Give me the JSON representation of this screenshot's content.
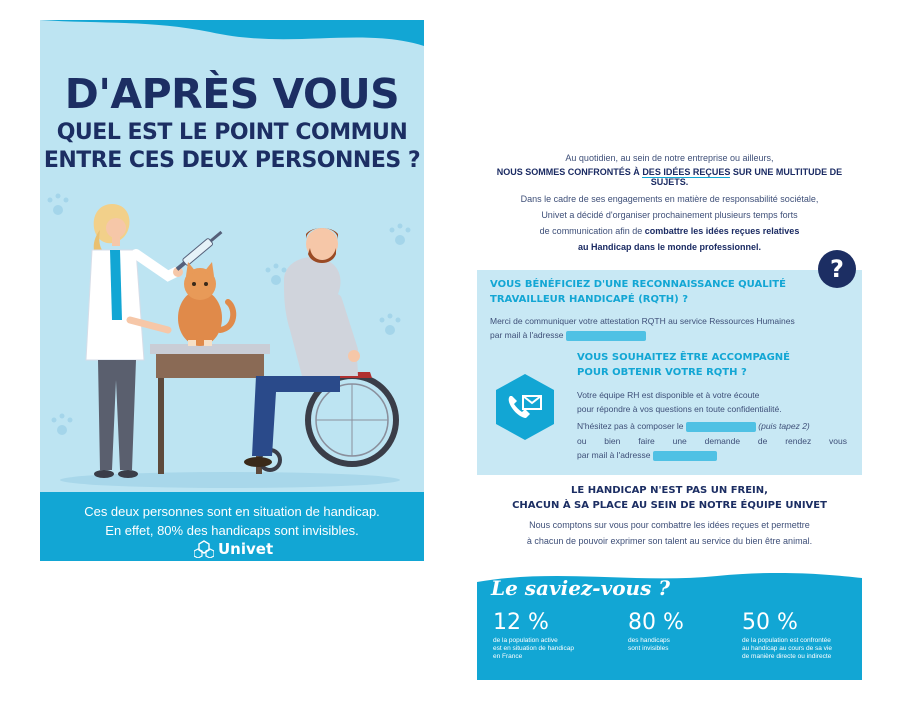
{
  "poster": {
    "title_line1": "D'APRÈS VOUS",
    "title_line2": "QUEL EST LE POINT COMMUN",
    "title_line3": "ENTRE CES DEUX PERSONNES ?",
    "footer_line1": "Ces deux personnes sont en situation de handicap.",
    "footer_line2": "En effet, 80% des handicaps sont invisibles.",
    "logo": "Univet"
  },
  "intro": {
    "line1": "Au quotidien, au sein de notre entreprise ou ailleurs,",
    "line2_a": "NOUS SOMMES CONFRONTÉS À ",
    "line2_b": "DES IDÉES REÇUES",
    "line2_c": " SUR UNE MULTITUDE DE SUJETS.",
    "line3": "Dans le cadre de ses engagements en matière de responsabilité sociétale,",
    "line4": "Univet a décidé d'organiser prochainement plusieurs temps forts",
    "line5_a": "de communication afin de ",
    "line5_b": "combattre les idées reçues relatives",
    "line6": "au Handicap dans le monde professionnel."
  },
  "badge": "?",
  "rqth": {
    "heading1": "VOUS BÉNÉFICIEZ D'UNE RECONNAISSANCE QUALITÉ",
    "heading2": "TRAVAILLEUR HANDICAPÉ (RQTH) ?",
    "text1": "Merci de communiquer votre attestation RQTH au service Ressources Humaines",
    "text2": "par mail à l'adresse"
  },
  "support": {
    "heading1": "VOUS SOUHAITEZ ÊTRE ACCOMPAGNÉ",
    "heading2": "POUR OBTENIR VOTRE RQTH ?",
    "text1": "Votre équipe RH est disponible et à votre écoute",
    "text2": "pour répondre à vos questions en toute confidentialité.",
    "text3_a": "N'hésitez pas à composer le",
    "text3_b": "(puis tapez 2)",
    "text4": "ou bien faire une demande de rendez vous",
    "text5": "par mail à l'adresse"
  },
  "section2": {
    "heading1": "LE HANDICAP N'EST PAS UN FREIN,",
    "heading2": "CHACUN À SA PLACE AU SEIN DE NOTRE ÉQUIPE UNIVET",
    "text1": "Nous comptons sur vous pour combattre les idées reçues et permettre",
    "text2": "à chacun de pouvoir exprimer son talent au service du bien être animal."
  },
  "saviez": {
    "title": "Le saviez-vous ?",
    "stats": [
      {
        "value": "12 %",
        "line1": "de la population active",
        "line2": "est en situation de handicap",
        "line3": "en France"
      },
      {
        "value": "80 %",
        "line1": "des handicaps",
        "line2": "sont invisibles",
        "line3": ""
      },
      {
        "value": "50 %",
        "line1": "de la population est confrontée",
        "line2": "au handicap au cours de sa vie",
        "line3": "de manière directe ou indirecte"
      }
    ]
  },
  "colors": {
    "navy": "#1c2e63",
    "cyan": "#12a6d4",
    "light_blue": "#bde4f2",
    "panel": "#c8e8f4"
  },
  "icons": [
    "paw-print-icon",
    "question-icon",
    "phone-mail-icon",
    "univet-logo-icon"
  ]
}
